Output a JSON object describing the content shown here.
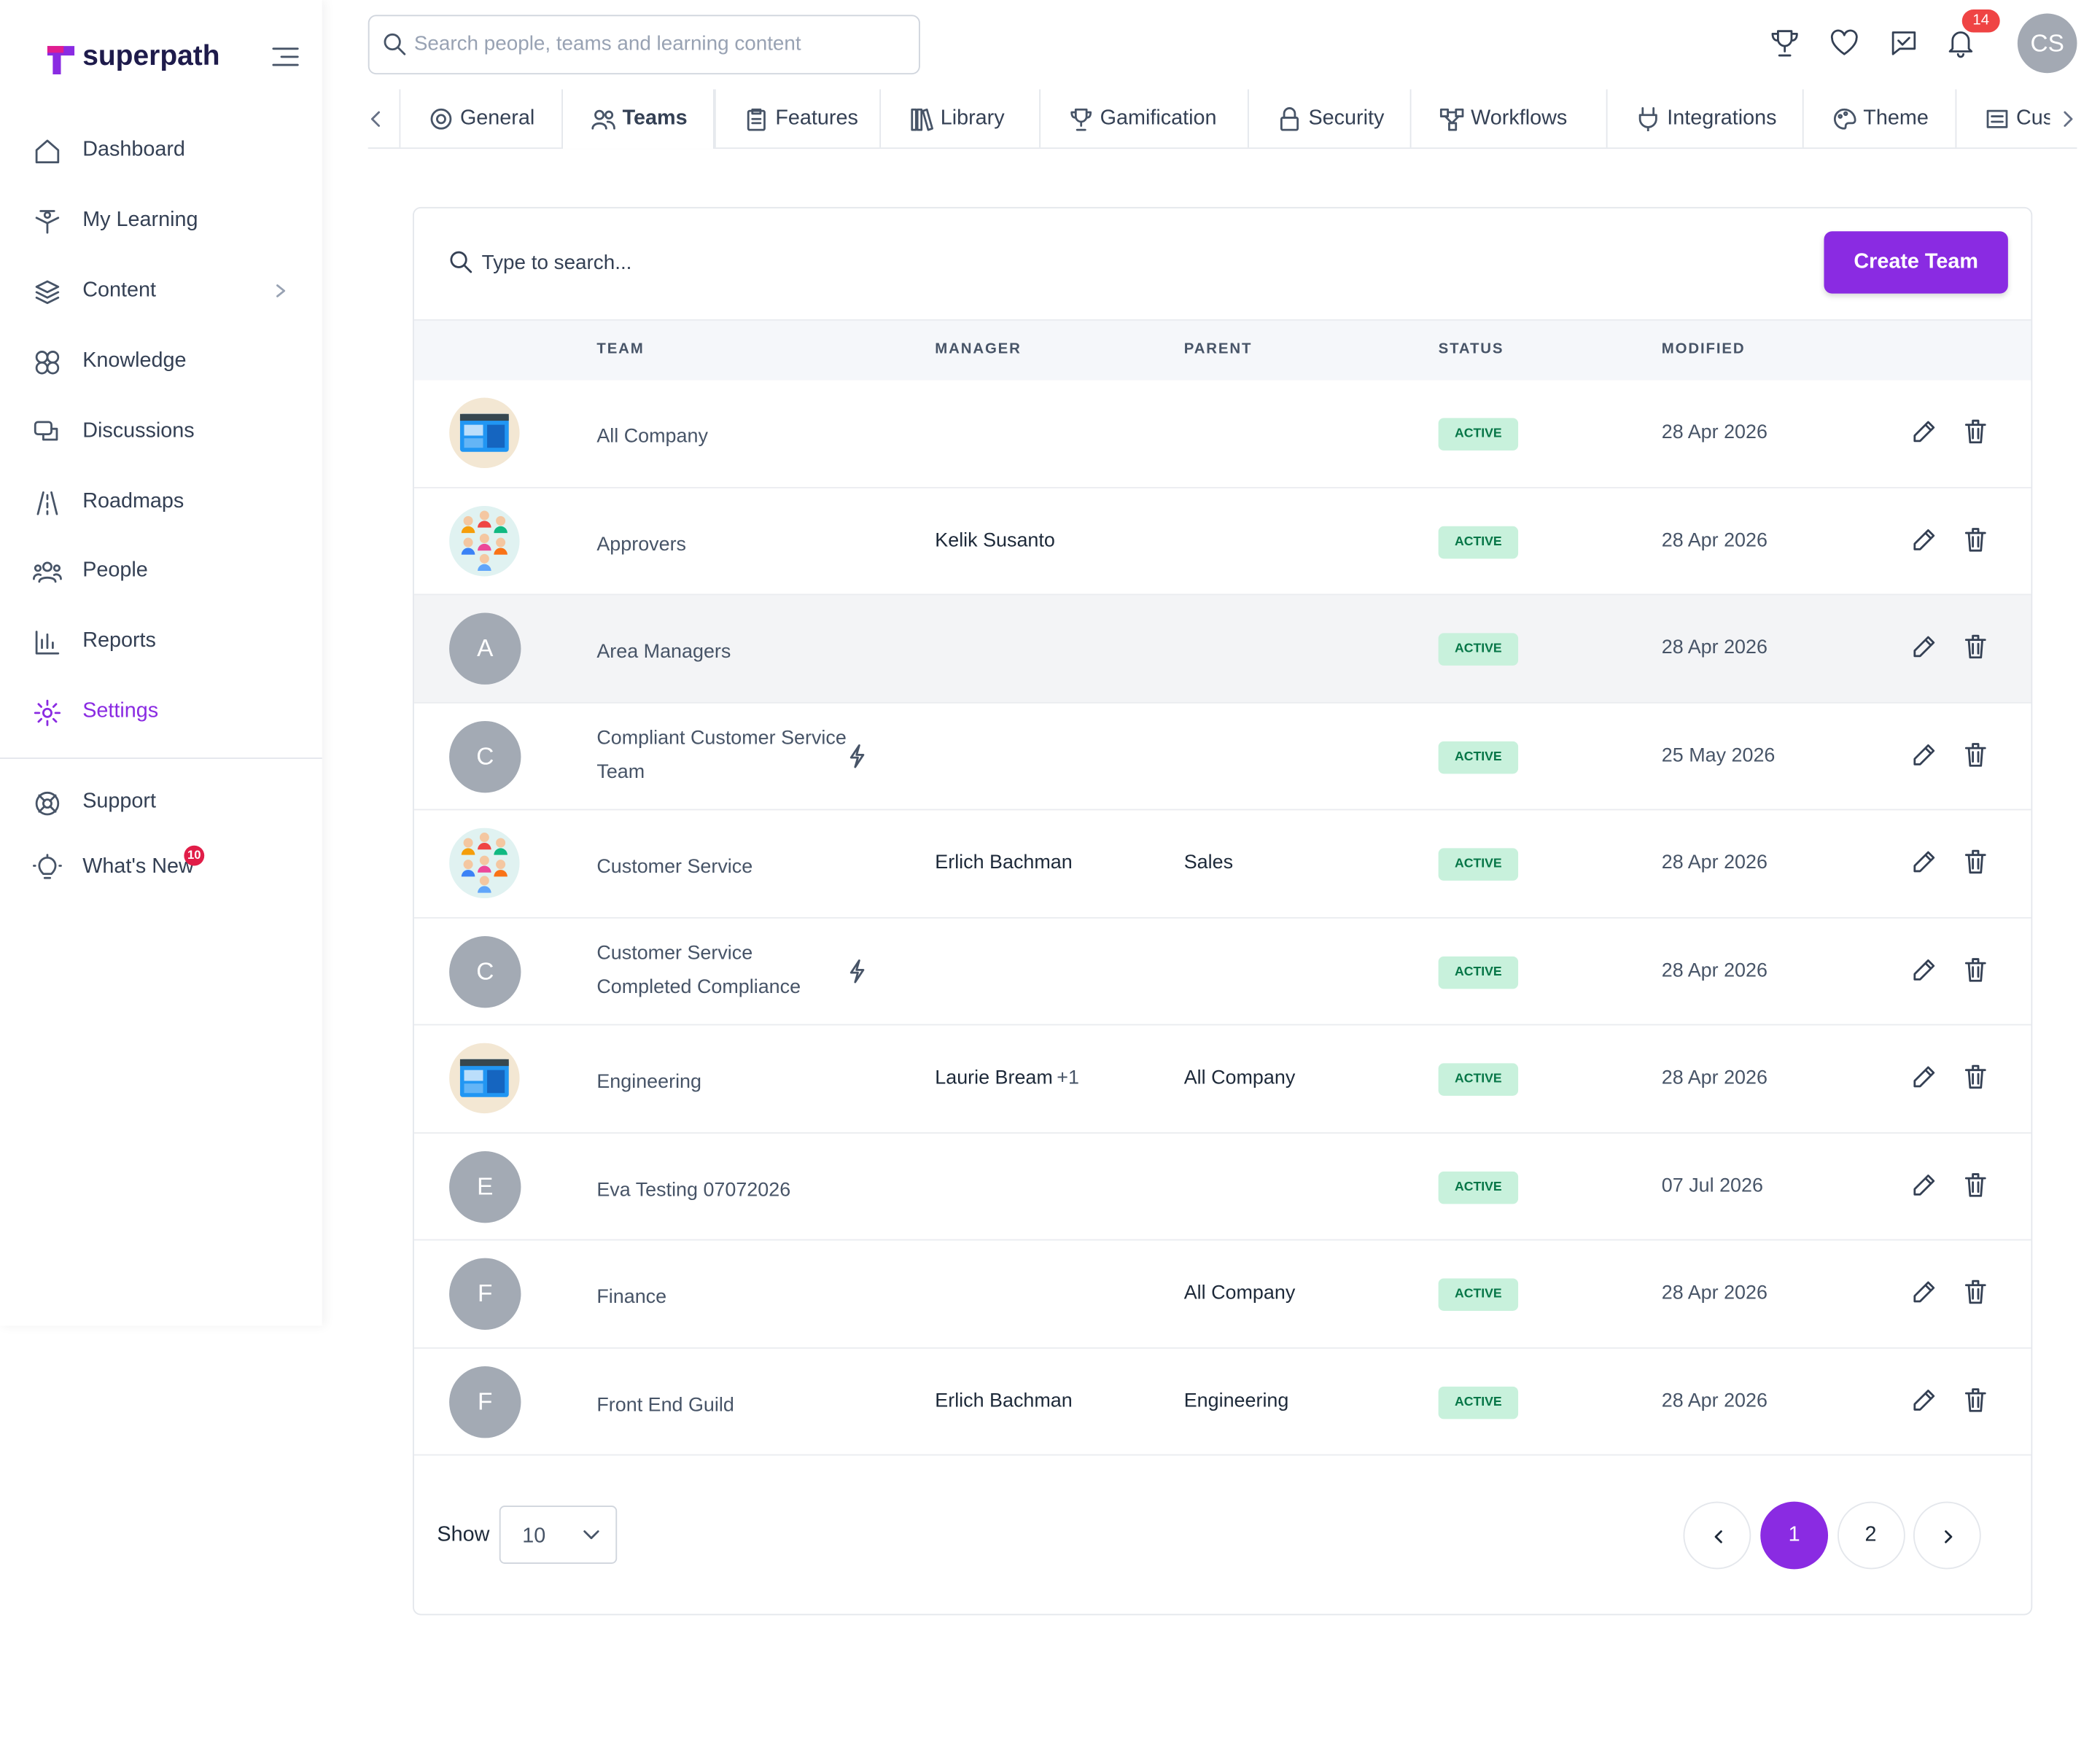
{
  "brand": "superpath",
  "sidebar": {
    "nav": [
      {
        "label": "Dashboard"
      },
      {
        "label": "My Learning"
      },
      {
        "label": "Content",
        "expandable": true
      },
      {
        "label": "Knowledge"
      },
      {
        "label": "Discussions"
      },
      {
        "label": "Roadmaps"
      },
      {
        "label": "People"
      },
      {
        "label": "Reports"
      },
      {
        "label": "Settings",
        "active": true
      }
    ],
    "footer_nav": [
      {
        "label": "Support"
      },
      {
        "label": "What's New",
        "badge": 10
      }
    ]
  },
  "topbar": {
    "search_placeholder": "Search people, teams and learning content",
    "notifications": 14,
    "avatar": "CS"
  },
  "tabs": [
    {
      "label": "General"
    },
    {
      "label": "Teams",
      "active": true
    },
    {
      "label": "Features"
    },
    {
      "label": "Library"
    },
    {
      "label": "Gamification"
    },
    {
      "label": "Security"
    },
    {
      "label": "Workflows"
    },
    {
      "label": "Integrations"
    },
    {
      "label": "Theme"
    },
    {
      "label": "Cus"
    }
  ],
  "table": {
    "search_placeholder": "Type to search...",
    "create_button": "Create Team",
    "columns": [
      "TEAM",
      "MANAGER",
      "PARENT",
      "STATUS",
      "MODIFIED"
    ],
    "rows": [
      {
        "avatar": {
          "image": "dashboard"
        },
        "team": "All Company",
        "status": "ACTIVE",
        "modified": "28 Apr 2026"
      },
      {
        "avatar": {
          "image": "people"
        },
        "team": "Approvers",
        "manager": "Kelik Susanto",
        "status": "ACTIVE",
        "modified": "28 Apr 2026"
      },
      {
        "avatar": {
          "letter": "A"
        },
        "team": "Area Managers",
        "status": "ACTIVE",
        "modified": "28 Apr 2026",
        "highlighted": true
      },
      {
        "avatar": {
          "letter": "C"
        },
        "team": "Compliant Customer Service Team",
        "sync": true,
        "status": "ACTIVE",
        "modified": "25 May 2026"
      },
      {
        "avatar": {
          "image": "people"
        },
        "team": "Customer Service",
        "manager": "Erlich Bachman",
        "parent": "Sales",
        "status": "ACTIVE",
        "modified": "28 Apr 2026"
      },
      {
        "avatar": {
          "letter": "C"
        },
        "team": "Customer Service Completed Compliance",
        "sync": true,
        "status": "ACTIVE",
        "modified": "28 Apr 2026"
      },
      {
        "avatar": {
          "image": "dashboard"
        },
        "team": "Engineering",
        "manager": "Laurie Bream",
        "manager_extra": "+1",
        "parent": "All Company",
        "status": "ACTIVE",
        "modified": "28 Apr 2026"
      },
      {
        "avatar": {
          "letter": "E"
        },
        "team": "Eva Testing 07072026",
        "status": "ACTIVE",
        "modified": "07 Jul 2026"
      },
      {
        "avatar": {
          "letter": "F"
        },
        "team": "Finance",
        "parent": "All Company",
        "status": "ACTIVE",
        "modified": "28 Apr 2026"
      },
      {
        "avatar": {
          "letter": "F"
        },
        "team": "Front End Guild",
        "manager": "Erlich Bachman",
        "parent": "Engineering",
        "status": "ACTIVE",
        "modified": "28 Apr 2026"
      }
    ]
  },
  "footer": {
    "show_label": "Show",
    "page_size": 10,
    "pages": [
      1,
      2
    ],
    "current_page": 1
  }
}
